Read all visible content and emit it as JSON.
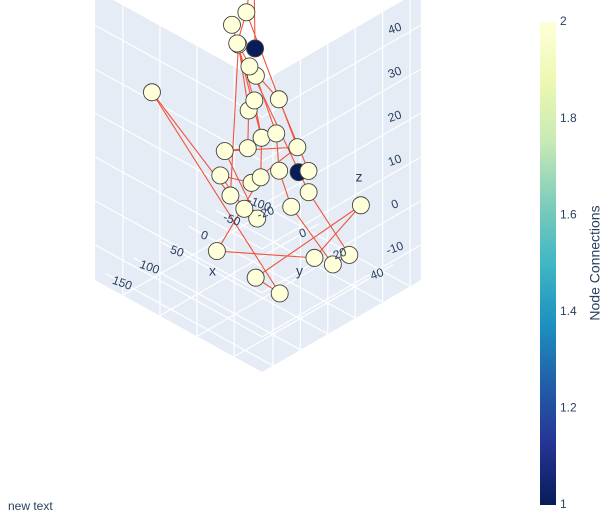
{
  "annotation": "new text",
  "chart_data": {
    "type": "scatter",
    "subtype": "3d-network",
    "axes": {
      "x": {
        "label": "x",
        "range": [
          -120,
          170
        ],
        "ticks": [
          -100,
          -50,
          0,
          50,
          100,
          150
        ]
      },
      "y": {
        "label": "y",
        "range": [
          -35,
          55
        ],
        "ticks": [
          -20,
          0,
          20,
          40
        ]
      },
      "z": {
        "label": "z",
        "range": [
          -18,
          48
        ],
        "ticks": [
          -10,
          0,
          10,
          20,
          30,
          40
        ]
      }
    },
    "colorbar": {
      "title": "Node Connections",
      "range": [
        1,
        2
      ],
      "ticks": [
        "1",
        "1.2",
        "1.4",
        "1.6",
        "1.8",
        "2"
      ],
      "colorscale": [
        "#081d58",
        "#253494",
        "#225ea8",
        "#1d91c0",
        "#41b6c4",
        "#7fcdbb",
        "#c7e9b4",
        "#edf8b1",
        "#ffffd9"
      ]
    },
    "edge_color": "#ef553b",
    "marker_line_color": "#444444",
    "nodes": [
      {
        "x": -62,
        "y": -18,
        "z": 42,
        "c": 2
      },
      {
        "x": -105,
        "y": -30,
        "z": 16,
        "c": 1
      },
      {
        "x": -35,
        "y": -14,
        "z": 33,
        "c": 2
      },
      {
        "x": 2,
        "y": -8,
        "z": 30,
        "c": 2
      },
      {
        "x": -2,
        "y": -12,
        "z": 33,
        "c": 2
      },
      {
        "x": 10,
        "y": -5,
        "z": 31,
        "c": 2
      },
      {
        "x": 0,
        "y": -2,
        "z": 26,
        "c": 2
      },
      {
        "x": -5,
        "y": 0,
        "z": 24,
        "c": 2
      },
      {
        "x": 8,
        "y": 3,
        "z": 20,
        "c": 2
      },
      {
        "x": 15,
        "y": 2,
        "z": 18,
        "c": 2
      },
      {
        "x": -30,
        "y": 5,
        "z": 18,
        "c": 2
      },
      {
        "x": 100,
        "y": -25,
        "z": 22,
        "c": 2
      },
      {
        "x": -40,
        "y": 12,
        "z": 8,
        "c": 2
      },
      {
        "x": -15,
        "y": 8,
        "z": 12,
        "c": 2
      },
      {
        "x": 5,
        "y": 6,
        "z": 12,
        "c": 2
      },
      {
        "x": 20,
        "y": 3,
        "z": 10,
        "c": 2
      },
      {
        "x": 45,
        "y": -2,
        "z": 10,
        "c": 2
      },
      {
        "x": -40,
        "y": 18,
        "z": 4,
        "c": 2
      },
      {
        "x": -22,
        "y": 18,
        "z": 5,
        "c": 1
      },
      {
        "x": 0,
        "y": 14,
        "z": 6,
        "c": 2
      },
      {
        "x": 20,
        "y": 10,
        "z": 5,
        "c": 2
      },
      {
        "x": 30,
        "y": 8,
        "z": 4,
        "c": 2
      },
      {
        "x": 55,
        "y": 4,
        "z": 2,
        "c": 2
      },
      {
        "x": -20,
        "y": 24,
        "z": 2,
        "c": 2
      },
      {
        "x": 5,
        "y": 22,
        "z": 0,
        "c": 2
      },
      {
        "x": 40,
        "y": 14,
        "z": -2,
        "c": 2
      },
      {
        "x": -95,
        "y": 30,
        "z": -5,
        "c": 2
      },
      {
        "x": -40,
        "y": 40,
        "z": -10,
        "c": 2
      },
      {
        "x": -10,
        "y": 40,
        "z": -10,
        "c": 2
      },
      {
        "x": 10,
        "y": 36,
        "z": -8,
        "c": 2
      },
      {
        "x": 100,
        "y": 10,
        "z": -6,
        "c": 2
      },
      {
        "x": 80,
        "y": 25,
        "z": -10,
        "c": 2
      },
      {
        "x": 70,
        "y": 35,
        "z": -12,
        "c": 2
      },
      {
        "x": 60,
        "y": 0,
        "z": 6,
        "c": 2
      },
      {
        "x": 50,
        "y": 10,
        "z": 0,
        "c": 2
      }
    ],
    "edges": [
      [
        0,
        1
      ],
      [
        0,
        2
      ],
      [
        2,
        3
      ],
      [
        3,
        7
      ],
      [
        4,
        8
      ],
      [
        5,
        9
      ],
      [
        6,
        10
      ],
      [
        7,
        13
      ],
      [
        8,
        14
      ],
      [
        9,
        15
      ],
      [
        10,
        17
      ],
      [
        11,
        32
      ],
      [
        11,
        22
      ],
      [
        12,
        21
      ],
      [
        13,
        19
      ],
      [
        14,
        20
      ],
      [
        15,
        16
      ],
      [
        16,
        25
      ],
      [
        17,
        18
      ],
      [
        19,
        24
      ],
      [
        20,
        30
      ],
      [
        21,
        33
      ],
      [
        23,
        27
      ],
      [
        24,
        28
      ],
      [
        26,
        31
      ],
      [
        26,
        29
      ],
      [
        27,
        28
      ],
      [
        29,
        30
      ],
      [
        31,
        32
      ],
      [
        12,
        16
      ],
      [
        6,
        23
      ],
      [
        3,
        14
      ],
      [
        5,
        22
      ],
      [
        33,
        34
      ],
      [
        34,
        25
      ],
      [
        2,
        12
      ]
    ]
  }
}
